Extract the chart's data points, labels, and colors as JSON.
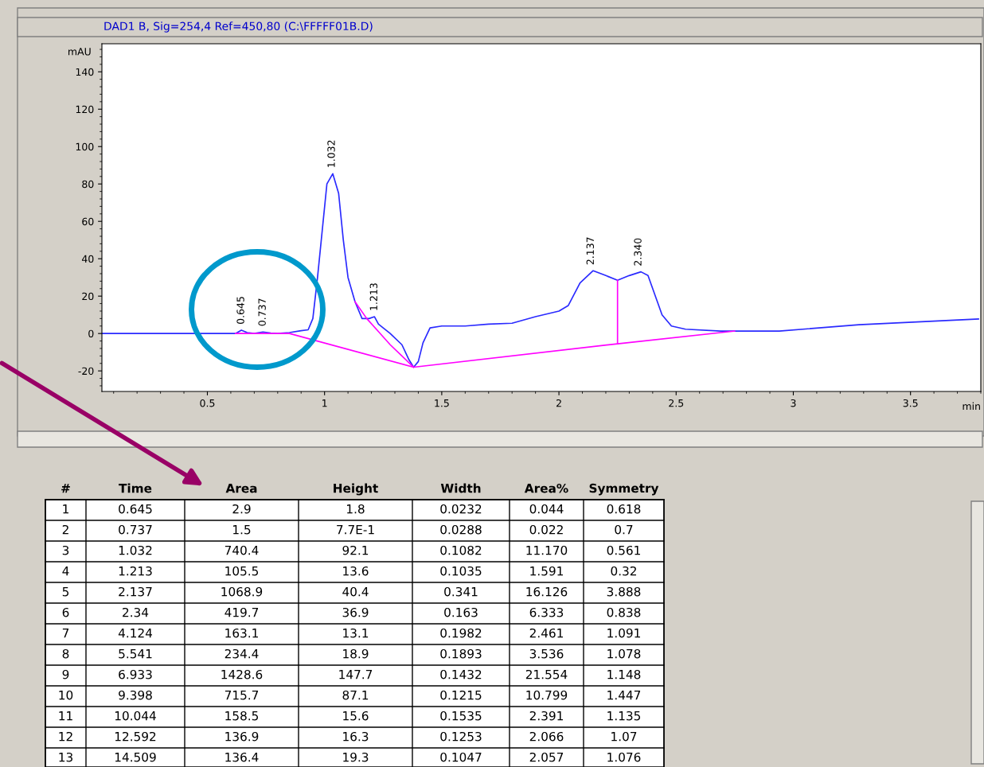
{
  "chart_data": {
    "type": "line",
    "title": "DAD1 B, Sig=254,4 Ref=450,80 (C:\\FFFFF01B.D)",
    "xlabel": "min",
    "ylabel": "mAU",
    "xlim": [
      0.05,
      3.8
    ],
    "ylim": [
      -31,
      155
    ],
    "xticks": [
      0.5,
      1,
      1.5,
      2,
      2.5,
      3,
      3.5
    ],
    "yticks": [
      -20,
      0,
      20,
      40,
      60,
      80,
      100,
      120,
      140
    ],
    "series": [
      {
        "color": "#2a2aff",
        "x": [
          0.05,
          0.3,
          0.62,
          0.645,
          0.67,
          0.7,
          0.737,
          0.77,
          0.8,
          0.85,
          0.9,
          0.93,
          0.95,
          0.97,
          0.99,
          1.01,
          1.035,
          1.06,
          1.08,
          1.1,
          1.13,
          1.16,
          1.19,
          1.213,
          1.23,
          1.28,
          1.33,
          1.36,
          1.38,
          1.4,
          1.42,
          1.45,
          1.5,
          1.6,
          1.7,
          1.8,
          1.9,
          2.0,
          2.04,
          2.09,
          2.146,
          2.2,
          2.25,
          2.3,
          2.35,
          2.38,
          2.42,
          2.44,
          2.48,
          2.54,
          2.69,
          2.94,
          3.28,
          3.79
        ],
        "values": [
          0,
          0,
          0,
          1.8,
          0.5,
          0,
          0.8,
          0.2,
          0,
          0.5,
          1.5,
          2,
          8,
          30,
          55,
          80,
          85.5,
          75,
          50,
          30,
          17,
          8,
          8,
          9,
          5,
          0,
          -6,
          -14,
          -18,
          -15,
          -5,
          3,
          4,
          4,
          5,
          5.5,
          9,
          12,
          15,
          27,
          33.6,
          31,
          28.5,
          31,
          33,
          31,
          17,
          10,
          4,
          2.3,
          1.3,
          1.3,
          4.7,
          7.8
        ]
      },
      {
        "color": "#ff00ff",
        "x": [
          0.62,
          0.85,
          1.38,
          2.25,
          2.75
        ],
        "values": [
          0,
          0,
          -18,
          -5.5,
          1.3
        ]
      },
      {
        "color": "#ff00ff",
        "x": [
          1.13,
          1.18,
          1.23,
          1.28,
          1.33,
          1.38
        ],
        "values": [
          17,
          8,
          1,
          -6,
          -12,
          -18
        ]
      },
      {
        "color": "#ff00ff",
        "x": [
          2.25,
          2.25
        ],
        "values": [
          -5.5,
          28.5
        ]
      }
    ],
    "annotations": [
      {
        "text": "0.645",
        "x": 0.645,
        "y": 1.8
      },
      {
        "text": "0.737",
        "x": 0.737,
        "y": 0.8
      },
      {
        "text": "1.032",
        "x": 1.032,
        "y": 85.5
      },
      {
        "text": "1.213",
        "x": 1.213,
        "y": 9
      },
      {
        "text": "2.137",
        "x": 2.137,
        "y": 33.6
      },
      {
        "text": "2.340",
        "x": 2.34,
        "y": 33
      },
      "#",
      "Time",
      "Area",
      "Height",
      "Width",
      "Area%",
      "Symmetry",
      "1",
      "0.645",
      "2.9",
      "1.8",
      "0.0232",
      "0.044",
      "0.618",
      "2",
      "0.737",
      "1.5",
      "7.7E-1",
      "0.0288",
      "0.022",
      "0.7",
      "3",
      "1.032",
      "740.4",
      "92.1",
      "0.1082",
      "11.170",
      "0.561",
      "4",
      "1.213",
      "105.5",
      "13.6",
      "0.1035",
      "1.591",
      "0.32",
      "5",
      "2.137",
      "1068.9",
      "40.4",
      "0.341",
      "16.126",
      "3.888",
      "6",
      "2.34",
      "419.7",
      "36.9",
      "0.163",
      "6.333",
      "0.838",
      "7",
      "4.124",
      "163.1",
      "13.1",
      "0.1982",
      "2.461",
      "1.091",
      "8",
      "5.541",
      "234.4",
      "18.9",
      "0.1893",
      "3.536",
      "1.078",
      "9",
      "6.933",
      "1428.6",
      "147.7",
      "0.1432",
      "21.554",
      "1.148",
      "10",
      "9.398",
      "715.7",
      "87.1",
      "0.1215",
      "10.799",
      "1.447",
      "11",
      "10.044",
      "158.5",
      "15.6",
      "0.1535",
      "2.391",
      "1.135",
      "12",
      "12.592",
      "136.9",
      "16.3",
      "0.1253",
      "2.066",
      "1.07",
      "13",
      "14.509",
      "136.4",
      "19.3",
      "0.1047",
      "2.057",
      "1.076"
    ]
  }
}
